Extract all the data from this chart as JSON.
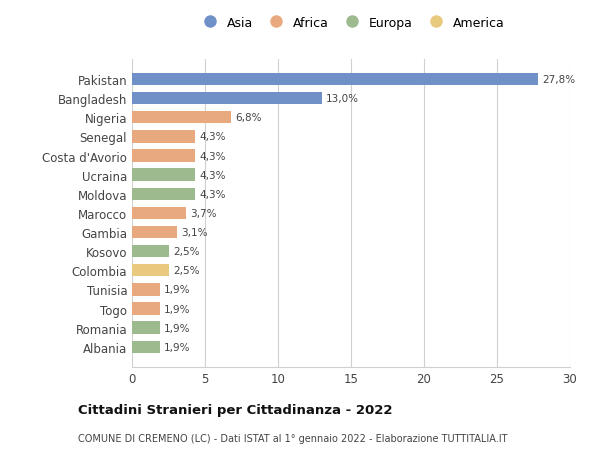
{
  "categories": [
    "Albania",
    "Romania",
    "Togo",
    "Tunisia",
    "Colombia",
    "Kosovo",
    "Gambia",
    "Marocco",
    "Moldova",
    "Ucraina",
    "Costa d'Avorio",
    "Senegal",
    "Nigeria",
    "Bangladesh",
    "Pakistan"
  ],
  "values": [
    1.9,
    1.9,
    1.9,
    1.9,
    2.5,
    2.5,
    3.1,
    3.7,
    4.3,
    4.3,
    4.3,
    4.3,
    6.8,
    13.0,
    27.8
  ],
  "labels": [
    "1,9%",
    "1,9%",
    "1,9%",
    "1,9%",
    "2,5%",
    "2,5%",
    "3,1%",
    "3,7%",
    "4,3%",
    "4,3%",
    "4,3%",
    "4,3%",
    "6,8%",
    "13,0%",
    "27,8%"
  ],
  "colors": [
    "#9dba8f",
    "#9dba8f",
    "#e8a97e",
    "#e8a97e",
    "#e8c97e",
    "#9dba8f",
    "#e8a97e",
    "#e8a97e",
    "#9dba8f",
    "#9dba8f",
    "#e8a97e",
    "#e8a97e",
    "#e8a97e",
    "#7090c8",
    "#7090c8"
  ],
  "continent_colors": {
    "Asia": "#7090c8",
    "Africa": "#e8a97e",
    "Europa": "#9dba8f",
    "America": "#e8c97e"
  },
  "xlim": [
    0,
    30
  ],
  "xticks": [
    0,
    5,
    10,
    15,
    20,
    25,
    30
  ],
  "title": "Cittadini Stranieri per Cittadinanza - 2022",
  "subtitle": "COMUNE DI CREMENO (LC) - Dati ISTAT al 1° gennaio 2022 - Elaborazione TUTTITALIA.IT",
  "background_color": "#ffffff",
  "bar_height": 0.65,
  "grid_color": "#d0d0d0"
}
